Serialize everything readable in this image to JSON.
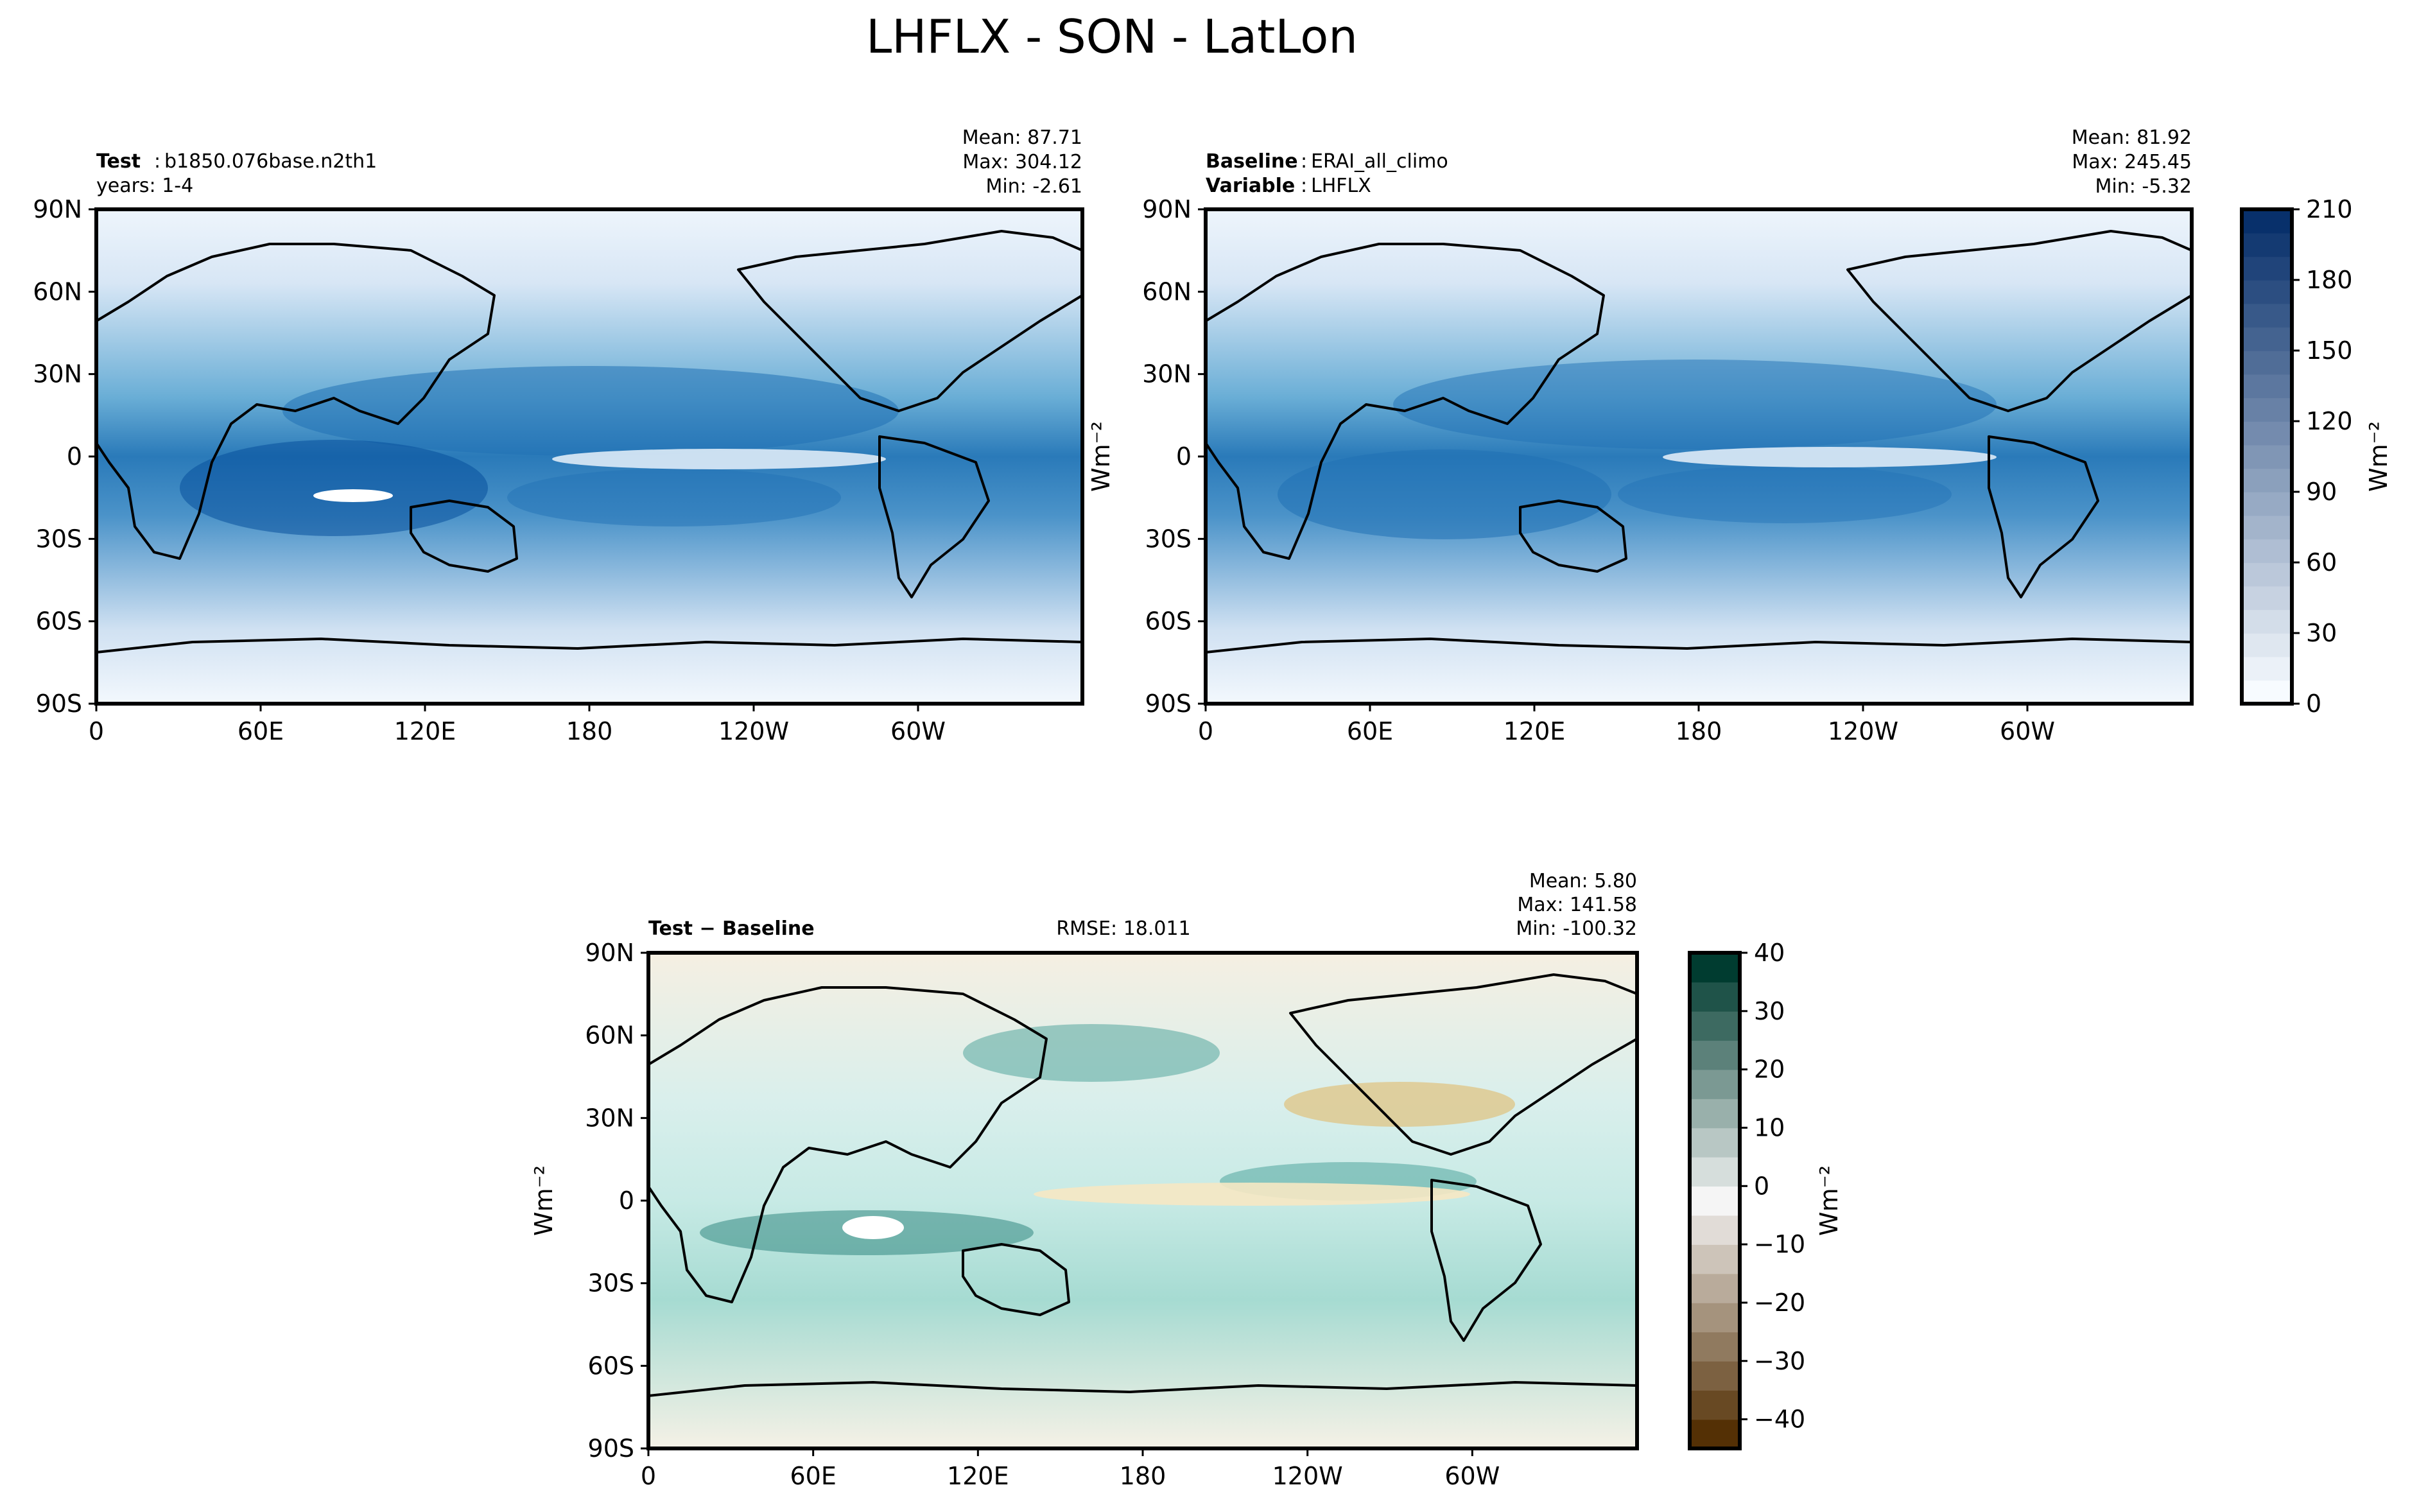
{
  "figure": {
    "title": "LHFLX - SON - LatLon"
  },
  "panels": {
    "test": {
      "label_key": "Test",
      "label_value": "b1850.076base.n2th1",
      "line2": "years: 1-4",
      "stat_mean": "Mean: 87.71",
      "stat_max": "Max: 304.12",
      "stat_min": "Min: -2.61"
    },
    "baseline": {
      "label_key": "Baseline",
      "label_value": "ERAI_all_climo",
      "var_key": "Variable",
      "var_value": "LHFLX",
      "stat_mean": "Mean: 81.92",
      "stat_max": "Max: 245.45",
      "stat_min": "Min: -5.32"
    },
    "diff": {
      "label": "Test − Baseline",
      "rmse": "RMSE: 18.011",
      "stat_mean": "Mean:  5.80",
      "stat_max": "Max: 141.58",
      "stat_min": "Min: -100.32"
    }
  },
  "chart_data": [
    {
      "type": "heatmap",
      "name": "Test",
      "title": "Test: b1850.076base.n2th1",
      "xlabel": "",
      "ylabel": "",
      "x_ticks": [
        "0",
        "60E",
        "120E",
        "180",
        "120W",
        "60W"
      ],
      "y_ticks": [
        "90N",
        "60N",
        "30N",
        "0",
        "30S",
        "60S",
        "90S"
      ],
      "xlim": [
        0,
        360
      ],
      "ylim": [
        -90,
        90
      ],
      "stats": {
        "mean": 87.71,
        "max": 304.12,
        "min": -2.61
      }
    },
    {
      "type": "heatmap",
      "name": "Baseline",
      "title": "Baseline: ERAI_all_climo",
      "xlabel": "",
      "ylabel": "",
      "x_ticks": [
        "0",
        "60E",
        "120E",
        "180",
        "120W",
        "60W"
      ],
      "y_ticks": [
        "90N",
        "60N",
        "30N",
        "0",
        "30S",
        "60S",
        "90S"
      ],
      "xlim": [
        0,
        360
      ],
      "ylim": [
        -90,
        90
      ],
      "stats": {
        "mean": 81.92,
        "max": 245.45,
        "min": -5.32
      }
    },
    {
      "type": "heatmap",
      "name": "Test - Baseline",
      "title": "Test − Baseline",
      "rmse": 18.011,
      "x_ticks": [
        "0",
        "60E",
        "120E",
        "180",
        "120W",
        "60W"
      ],
      "y_ticks": [
        "90N",
        "60N",
        "30N",
        "0",
        "30S",
        "60S",
        "90S"
      ],
      "xlim": [
        0,
        360
      ],
      "ylim": [
        -90,
        90
      ],
      "ylabel": "Wm⁻²",
      "stats": {
        "mean": 5.8,
        "max": 141.58,
        "min": -100.32
      }
    }
  ],
  "colorbars": {
    "top": {
      "label": "Wm⁻²",
      "range": [
        0,
        210
      ],
      "ticks": [
        "210",
        "180",
        "150",
        "120",
        "90",
        "60",
        "30",
        "0"
      ],
      "levels": 21,
      "colors": [
        "#f7fbff",
        "#08306b"
      ]
    },
    "bottom": {
      "label": "Wm⁻²",
      "range": [
        -45,
        40
      ],
      "ticks": [
        "40",
        "30",
        "20",
        "10",
        "0",
        "−10",
        "−20",
        "−30",
        "−40"
      ],
      "levels": 17,
      "colors": [
        "#543005",
        "#f5f5f5",
        "#003c30"
      ]
    }
  },
  "top_units_label": "Wm⁻²"
}
